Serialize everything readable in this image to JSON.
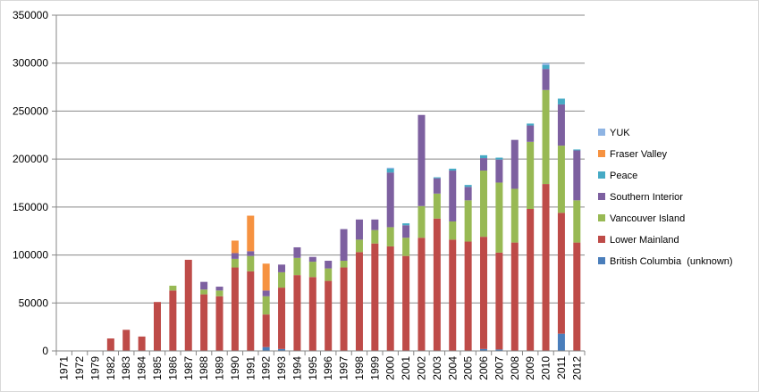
{
  "chart_data": {
    "type": "bar",
    "stacked": true,
    "title": "",
    "xlabel": "",
    "ylabel": "",
    "ylim": [
      0,
      350000
    ],
    "yticks": [
      0,
      50000,
      100000,
      150000,
      200000,
      250000,
      300000,
      350000
    ],
    "ytick_labels": [
      "0",
      "50000",
      "100000",
      "150000",
      "200000",
      "250000",
      "300000",
      "350000"
    ],
    "grid": "horizontal",
    "legend_position": "right",
    "categories": [
      "1971",
      "1972",
      "1979",
      "1982",
      "1983",
      "1984",
      "1985",
      "1986",
      "1987",
      "1988",
      "1989",
      "1990",
      "1991",
      "1992",
      "1993",
      "1994",
      "1995",
      "1996",
      "1997",
      "1998",
      "1999",
      "2000",
      "2001",
      "2002",
      "2003",
      "2004",
      "2005",
      "2006",
      "2007",
      "2008",
      "2009",
      "2010",
      "2011",
      "2012"
    ],
    "series": [
      {
        "name": "British Columbia  (unknown)",
        "color": "#4a7ebb",
        "values": [
          0,
          0,
          0,
          0,
          0,
          0,
          0,
          0,
          0,
          0,
          0,
          0,
          0,
          4000,
          2000,
          0,
          0,
          0,
          0,
          0,
          0,
          0,
          0,
          0,
          0,
          0,
          0,
          2000,
          1500,
          0,
          0,
          0,
          18000,
          0
        ]
      },
      {
        "name": "Lower Mainland",
        "color": "#be4b48",
        "values": [
          0,
          0,
          0,
          13000,
          22000,
          15000,
          51000,
          63000,
          95000,
          59000,
          57000,
          87000,
          83000,
          34000,
          64000,
          79000,
          77000,
          73000,
          87000,
          103000,
          112000,
          109000,
          99000,
          118000,
          138000,
          116000,
          114000,
          117000,
          101000,
          113000,
          148000,
          174000,
          126000,
          113000
        ]
      },
      {
        "name": "Vancouver Island",
        "color": "#98b954",
        "values": [
          0,
          0,
          0,
          0,
          0,
          0,
          0,
          5000,
          0,
          5000,
          6000,
          9000,
          16000,
          19000,
          16000,
          18000,
          16000,
          13000,
          7000,
          13000,
          14000,
          20000,
          19000,
          33000,
          26000,
          19000,
          43000,
          69000,
          73000,
          56000,
          70000,
          98000,
          70000,
          44000
        ]
      },
      {
        "name": "Southern Interior",
        "color": "#7d60a0",
        "values": [
          0,
          0,
          0,
          0,
          0,
          0,
          0,
          0,
          0,
          8000,
          4000,
          6000,
          5000,
          6000,
          8000,
          11000,
          5000,
          8000,
          33000,
          21000,
          11000,
          57000,
          13000,
          95000,
          16000,
          53000,
          14000,
          13000,
          24000,
          51000,
          17000,
          22000,
          43000,
          52000
        ]
      },
      {
        "name": "Peace",
        "color": "#46aac5",
        "values": [
          0,
          0,
          0,
          0,
          0,
          0,
          0,
          0,
          0,
          0,
          0,
          0,
          0,
          0,
          0,
          0,
          0,
          0,
          0,
          0,
          0,
          4000,
          2000,
          0,
          1000,
          2000,
          2000,
          3000,
          2000,
          0,
          2000,
          4000,
          6000,
          1000
        ]
      },
      {
        "name": "Fraser Valley",
        "color": "#f69240",
        "values": [
          0,
          0,
          0,
          0,
          0,
          0,
          0,
          0,
          0,
          0,
          0,
          13000,
          37000,
          28000,
          0,
          0,
          0,
          0,
          0,
          0,
          0,
          0,
          0,
          0,
          0,
          0,
          0,
          0,
          0,
          0,
          0,
          0,
          0,
          0
        ]
      },
      {
        "name": "YUK",
        "color": "#8eb4e3",
        "values": [
          0,
          0,
          0,
          0,
          0,
          0,
          0,
          0,
          0,
          0,
          0,
          0,
          0,
          0,
          0,
          0,
          0,
          0,
          0,
          0,
          0,
          1000,
          0,
          0,
          0,
          0,
          0,
          0,
          0,
          0,
          0,
          2000,
          0,
          0
        ]
      }
    ],
    "legend_order": [
      "YUK",
      "Fraser Valley",
      "Peace",
      "Southern Interior",
      "Vancouver Island",
      "Lower Mainland",
      "British Columbia  (unknown)"
    ]
  }
}
